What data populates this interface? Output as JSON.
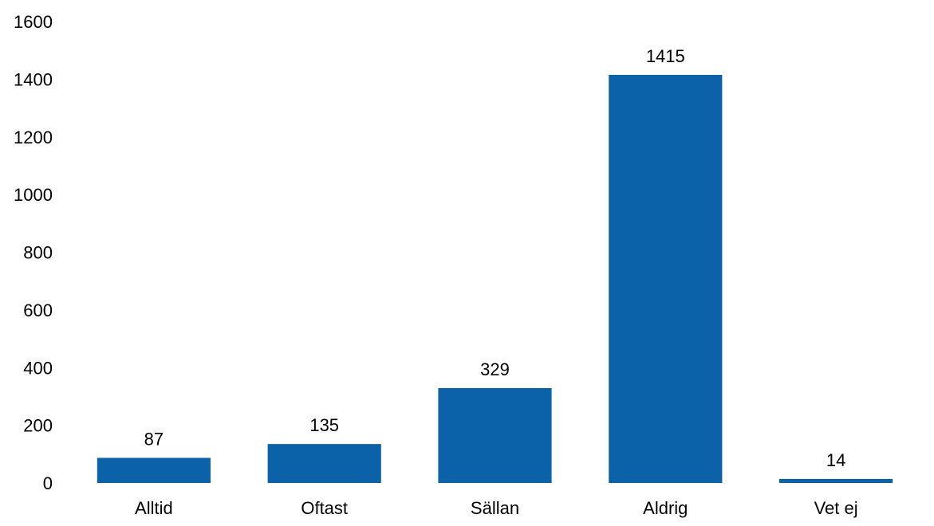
{
  "chart_data": {
    "type": "bar",
    "title": "",
    "xlabel": "",
    "ylabel": "",
    "categories": [
      "Alltid",
      "Oftast",
      "Sällan",
      "Aldrig",
      "Vet ej"
    ],
    "values": [
      87,
      135,
      329,
      1415,
      14
    ],
    "data_labels": [
      "87",
      "135",
      "329",
      "1415",
      "14"
    ],
    "ylim": [
      0,
      1600
    ],
    "yticks": [
      0,
      200,
      400,
      600,
      800,
      1000,
      1200,
      1400,
      1600
    ],
    "grid": false,
    "legend": "none",
    "bar_color": "#0b62a8"
  }
}
